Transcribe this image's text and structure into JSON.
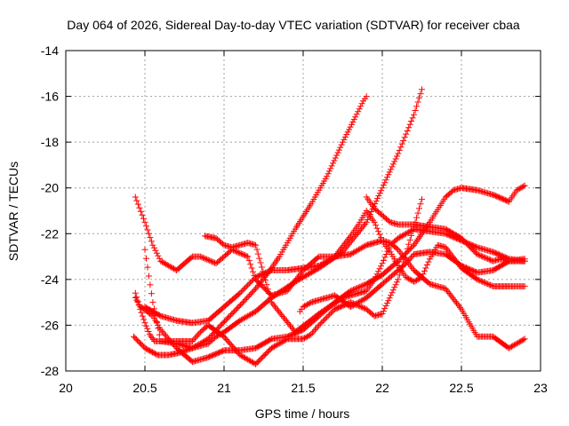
{
  "chart_data": {
    "type": "scatter",
    "title": "Day 064 of 2026, Sidereal Day-to-day VTEC variation (SDTVAR) for receiver cbaa",
    "xlabel": "GPS time / hours",
    "ylabel": "SDTVAR / TECUs",
    "xlim": [
      20,
      23
    ],
    "ylim": [
      -28,
      -14
    ],
    "xticks": [
      20,
      20.5,
      21,
      21.5,
      22,
      22.5,
      23
    ],
    "xtick_labels": [
      "20",
      "20.5",
      "21",
      "21.5",
      "22",
      "22.5",
      "23"
    ],
    "yticks": [
      -28,
      -26,
      -24,
      -22,
      -20,
      -18,
      -16,
      -14
    ],
    "ytick_labels": [
      "-28",
      "-26",
      "-24",
      "-22",
      "-20",
      "-18",
      "-16",
      "-14"
    ],
    "grid": true,
    "marker": "+",
    "color": "#ff0000",
    "series": [
      {
        "name": "s1",
        "x": [
          20.43,
          20.5,
          20.58,
          20.65,
          20.72,
          20.8,
          20.9,
          20.98,
          21.05,
          21.12,
          21.2,
          21.28,
          21.35,
          21.45,
          21.55,
          21.65,
          21.75,
          21.83,
          21.88,
          21.9
        ],
        "y": [
          -26.5,
          -27.0,
          -27.3,
          -27.3,
          -27.2,
          -27.0,
          -26.6,
          -26.0,
          -25.5,
          -25.0,
          -24.4,
          -23.7,
          -23.0,
          -21.8,
          -20.7,
          -19.5,
          -18.0,
          -16.9,
          -16.2,
          -16.0
        ]
      },
      {
        "name": "s2",
        "x": [
          20.44,
          20.47,
          20.5,
          20.53,
          20.56,
          20.6,
          20.7,
          20.8,
          20.9,
          20.95,
          21.0,
          21.1,
          21.2,
          21.3,
          21.45,
          21.6,
          21.75,
          21.9,
          22.0,
          22.1,
          22.2,
          22.25
        ],
        "y": [
          -24.6,
          -25.3,
          -25.9,
          -26.4,
          -26.7,
          -26.7,
          -26.8,
          -27.0,
          -26.8,
          -26.5,
          -26.3,
          -25.8,
          -25.4,
          -24.8,
          -24.1,
          -23.5,
          -22.8,
          -21.5,
          -20.0,
          -18.5,
          -16.8,
          -15.7
        ]
      },
      {
        "name": "s3",
        "x": [
          20.44,
          20.47,
          20.5,
          20.53,
          20.55,
          20.6,
          20.7,
          20.8,
          20.9,
          21.0,
          21.1,
          21.2,
          21.3,
          21.4,
          21.5,
          21.6,
          21.7,
          21.8,
          21.9,
          22.0,
          22.1,
          22.2,
          22.3,
          22.4,
          22.45,
          22.5,
          22.6,
          22.7,
          22.8,
          22.85,
          22.9
        ],
        "y": [
          -24.8,
          -25.2,
          -25.3,
          -25.5,
          -25.6,
          -26.2,
          -27.0,
          -27.6,
          -27.4,
          -27.1,
          -27.1,
          -27.0,
          -26.6,
          -26.5,
          -26.2,
          -25.6,
          -25.0,
          -24.5,
          -24.2,
          -23.8,
          -23.2,
          -22.5,
          -21.5,
          -20.4,
          -20.1,
          -20.0,
          -20.1,
          -20.3,
          -20.6,
          -20.1,
          -19.9
        ]
      },
      {
        "name": "s4",
        "x": [
          20.44,
          20.5,
          20.55,
          20.6,
          20.7,
          20.8,
          20.85,
          20.95,
          21.0,
          21.05,
          21.15,
          21.2,
          21.3,
          21.4,
          21.5,
          21.6,
          21.7,
          21.8,
          21.9,
          22.0,
          22.05,
          22.1,
          22.2,
          22.3,
          22.4,
          22.5,
          22.6,
          22.7,
          22.8,
          22.9
        ],
        "y": [
          -20.4,
          -21.5,
          -22.5,
          -23.2,
          -23.6,
          -23.0,
          -23.0,
          -23.3,
          -23.0,
          -22.7,
          -23.0,
          -24.0,
          -24.7,
          -24.5,
          -23.6,
          -23.0,
          -23.0,
          -22.9,
          -22.5,
          -22.3,
          -22.4,
          -22.7,
          -23.6,
          -24.2,
          -24.4,
          -25.3,
          -26.5,
          -26.5,
          -27.0,
          -26.6
        ]
      },
      {
        "name": "s5",
        "x": [
          20.88,
          20.95,
          21.0,
          21.05,
          21.1,
          21.15,
          21.2,
          21.3,
          21.45,
          21.6,
          21.75,
          21.9,
          21.95,
          22.0,
          22.05,
          22.1,
          22.2,
          22.3,
          22.4,
          22.5,
          22.6,
          22.7,
          22.8,
          22.9
        ],
        "y": [
          -22.1,
          -22.2,
          -22.5,
          -22.6,
          -22.5,
          -22.4,
          -22.5,
          -25.0,
          -26.3,
          -25.5,
          -24.8,
          -24.5,
          -24.0,
          -23.3,
          -22.5,
          -22.2,
          -21.8,
          -21.9,
          -22.0,
          -22.3,
          -22.6,
          -22.8,
          -23.1,
          -23.2
        ]
      },
      {
        "name": "s6",
        "x": [
          20.5,
          20.6,
          20.7,
          20.8,
          20.9,
          21.0,
          21.1,
          21.2,
          21.3,
          21.4,
          21.5,
          21.6,
          21.7,
          21.8,
          21.85,
          21.9,
          21.95,
          22.0,
          22.05,
          22.1,
          22.15,
          22.2,
          22.25,
          22.3,
          22.35,
          22.4,
          22.5,
          22.6,
          22.7,
          22.8,
          22.9
        ],
        "y": [
          -25.2,
          -25.6,
          -25.8,
          -25.9,
          -25.8,
          -25.2,
          -24.6,
          -23.9,
          -23.6,
          -23.6,
          -23.5,
          -23.4,
          -23.0,
          -22.1,
          -21.6,
          -21.0,
          -21.5,
          -22.3,
          -22.8,
          -23.4,
          -23.9,
          -24.1,
          -23.9,
          -23.1,
          -22.5,
          -22.6,
          -23.5,
          -24.0,
          -24.3,
          -24.3,
          -24.3
        ]
      },
      {
        "name": "s7",
        "x": [
          20.5,
          20.55,
          20.6,
          20.7,
          20.8,
          20.85,
          20.9,
          21.0,
          21.1,
          21.2,
          21.3,
          21.4,
          21.5,
          21.55,
          21.6,
          21.7,
          21.8,
          21.9,
          21.95,
          22.0,
          22.1,
          22.2,
          22.25
        ],
        "y": [
          -22.7,
          -25.0,
          -26.7,
          -26.7,
          -26.7,
          -26.3,
          -26.0,
          -26.5,
          -27.3,
          -27.7,
          -27.0,
          -26.6,
          -26.6,
          -26.4,
          -26.0,
          -25.3,
          -25.0,
          -25.3,
          -25.6,
          -25.5,
          -24.0,
          -21.7,
          -20.5
        ]
      },
      {
        "name": "s8",
        "x": [
          21.48,
          21.5,
          21.55,
          21.6,
          21.7,
          21.8,
          21.9,
          22.0,
          22.05,
          22.1,
          22.15,
          22.2,
          22.3,
          22.4,
          22.5,
          22.6,
          22.7,
          22.8,
          22.9
        ],
        "y": [
          -25.4,
          -25.2,
          -25.0,
          -24.9,
          -24.7,
          -25.2,
          -24.8,
          -24.2,
          -23.9,
          -23.6,
          -23.3,
          -22.9,
          -22.8,
          -22.9,
          -23.4,
          -23.7,
          -23.6,
          -23.2,
          -23.1
        ]
      },
      {
        "name": "s9",
        "x": [
          21.9,
          21.95,
          22.0,
          22.05,
          22.1,
          22.2,
          22.3,
          22.4,
          22.5,
          22.6,
          22.7,
          22.75,
          22.8,
          22.85,
          22.9
        ],
        "y": [
          -20.4,
          -20.9,
          -21.2,
          -21.5,
          -21.6,
          -21.6,
          -21.7,
          -21.8,
          -22.2,
          -22.9,
          -23.2,
          -23.1,
          -23.2,
          -23.2,
          -23.2
        ]
      }
    ]
  }
}
